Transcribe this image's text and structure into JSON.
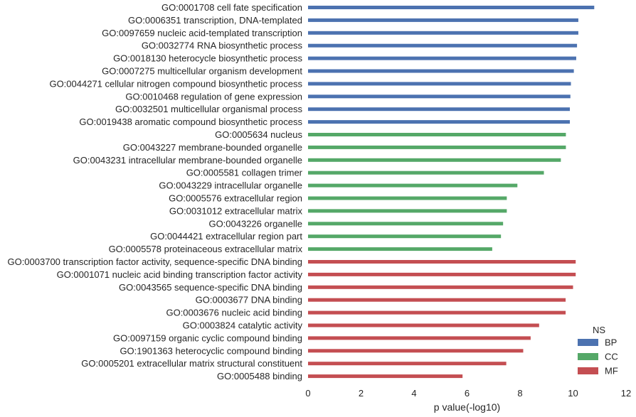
{
  "chart_data": {
    "type": "bar",
    "orientation": "horizontal",
    "xlabel": "p value(-log10)",
    "xlim": [
      0,
      12
    ],
    "xticks": [
      "0",
      "2",
      "4",
      "6",
      "8",
      "10",
      "12"
    ],
    "grid": false,
    "legend": {
      "title": "NS",
      "placement": "bottom-right",
      "entries": [
        "BP",
        "CC",
        "MF"
      ]
    },
    "series_colors": {
      "BP": "#4c72b0",
      "CC": "#55a868",
      "MF": "#c44e52"
    },
    "categories": [
      "GO:0001708 cell fate specification",
      "GO:0006351 transcription, DNA-templated",
      "GO:0097659 nucleic acid-templated transcription",
      "GO:0032774 RNA biosynthetic process",
      "GO:0018130 heterocycle biosynthetic process",
      "GO:0007275 multicellular organism development",
      "GO:0044271 cellular nitrogen compound biosynthetic process",
      "GO:0010468 regulation of gene expression",
      "GO:0032501 multicellular organismal process",
      "GO:0019438 aromatic compound biosynthetic process",
      "GO:0005634 nucleus",
      "GO:0043227 membrane-bounded organelle",
      "GO:0043231 intracellular membrane-bounded organelle",
      "GO:0005581 collagen trimer",
      "GO:0043229 intracellular organelle",
      "GO:0005576 extracellular region",
      "GO:0031012 extracellular matrix",
      "GO:0043226 organelle",
      "GO:0044421 extracellular region part",
      "GO:0005578 proteinaceous extracellular matrix",
      "GO:0003700 transcription factor activity, sequence-specific DNA binding",
      "GO:0001071 nucleic acid binding transcription factor activity",
      "GO:0043565 sequence-specific DNA binding",
      "GO:0003677 DNA binding",
      "GO:0003676 nucleic acid binding",
      "GO:0003824 catalytic activity",
      "GO:0097159 organic cyclic compound binding",
      "GO:1901363 heterocyclic compound binding",
      "GO:0005201 extracellular matrix structural constituent",
      "GO:0005488 binding"
    ],
    "ns": [
      "BP",
      "BP",
      "BP",
      "BP",
      "BP",
      "BP",
      "BP",
      "BP",
      "BP",
      "BP",
      "CC",
      "CC",
      "CC",
      "CC",
      "CC",
      "CC",
      "CC",
      "CC",
      "CC",
      "CC",
      "MF",
      "MF",
      "MF",
      "MF",
      "MF",
      "MF",
      "MF",
      "MF",
      "MF",
      "MF"
    ],
    "values": [
      10.8,
      10.2,
      10.2,
      10.15,
      10.12,
      10.03,
      9.92,
      9.9,
      9.88,
      9.88,
      9.73,
      9.73,
      9.54,
      8.9,
      7.9,
      7.5,
      7.5,
      7.36,
      7.28,
      6.95,
      10.1,
      10.1,
      10.0,
      9.72,
      9.72,
      8.72,
      8.4,
      8.12,
      7.48,
      5.83
    ]
  }
}
